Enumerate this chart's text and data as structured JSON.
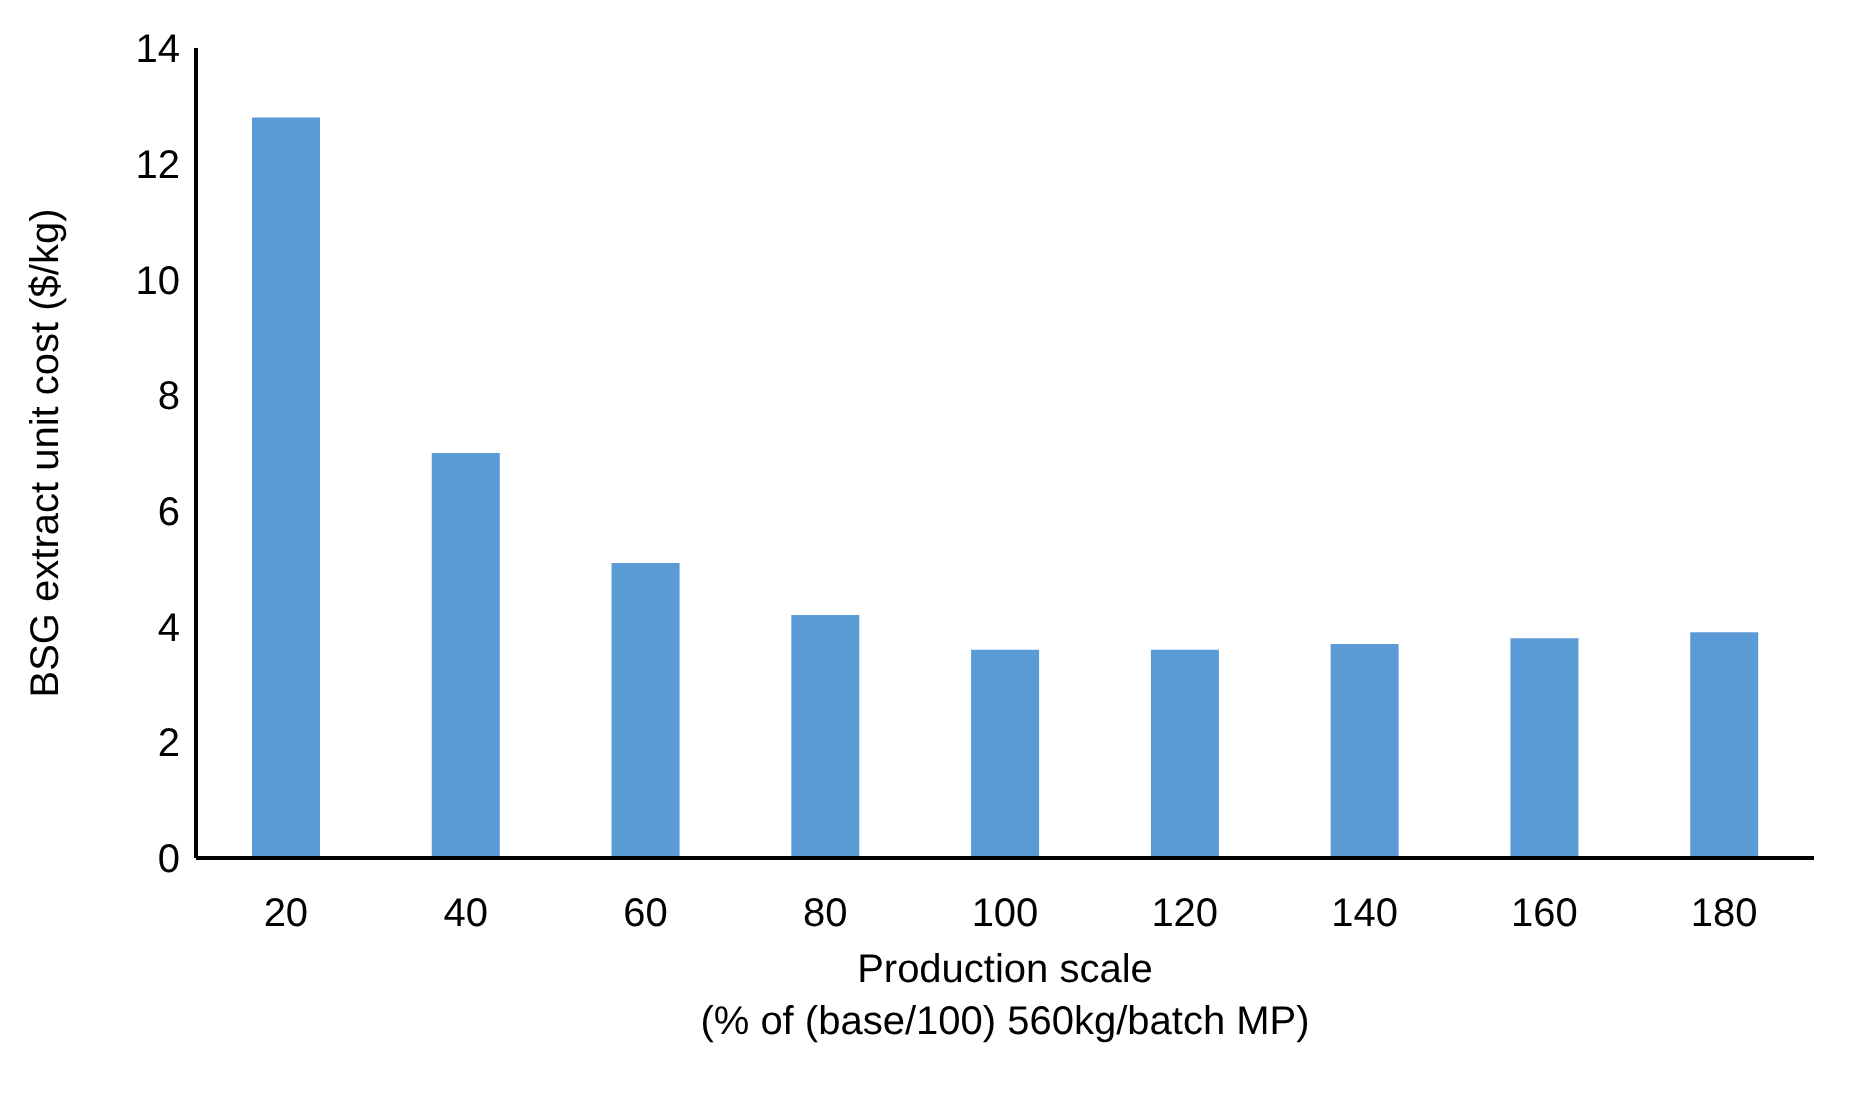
{
  "chart_data": {
    "type": "bar",
    "xlabel": "Production scale\n(% of (base/100) 560kg/batch MP)",
    "ylabel": "BSG extract unit cost ($/kg)",
    "categories": [
      "20",
      "40",
      "60",
      "80",
      "100",
      "120",
      "140",
      "160",
      "180"
    ],
    "values": [
      12.8,
      7.0,
      5.1,
      4.2,
      3.6,
      3.6,
      3.7,
      3.8,
      3.9
    ],
    "color": "#5b9bd5",
    "ylim": [
      0,
      14
    ],
    "yticks": [
      0,
      2,
      4,
      6,
      8,
      10,
      12,
      14
    ],
    "grid": false
  }
}
